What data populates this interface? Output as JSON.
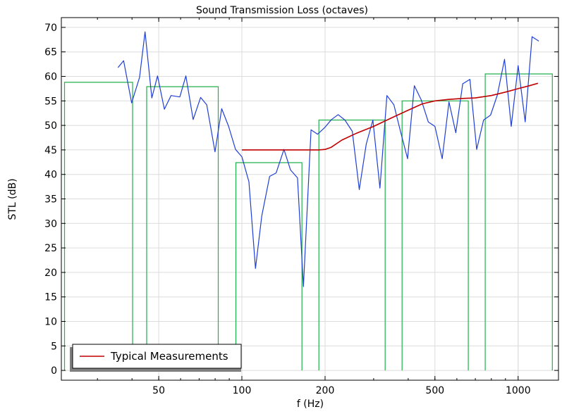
{
  "chart_data": {
    "type": "line",
    "title": "Sound Transmission Loss (octaves)",
    "xlabel": "f (Hz)",
    "ylabel": "STL (dB)",
    "xscale": "log",
    "xlim": [
      22.2,
      1400
    ],
    "ylim": [
      -2,
      72
    ],
    "grid": true,
    "x_ticks": [
      {
        "v": 50,
        "label": "50"
      },
      {
        "v": 100,
        "label": "100"
      },
      {
        "v": 200,
        "label": "200"
      },
      {
        "v": 500,
        "label": "500"
      },
      {
        "v": 1000,
        "label": "1000"
      }
    ],
    "y_ticks": [
      0,
      5,
      10,
      15,
      20,
      25,
      30,
      35,
      40,
      45,
      50,
      55,
      60,
      65,
      70
    ],
    "legend": {
      "position": "bottom-left",
      "entries": [
        "Typical Measurements"
      ]
    },
    "series": [
      {
        "color": "#1f3fd6",
        "points": [
          [
            35.6,
            61.8
          ],
          [
            37.3,
            63.2
          ],
          [
            39.9,
            54.6
          ],
          [
            42.6,
            59.8
          ],
          [
            44.6,
            69.1
          ],
          [
            47.2,
            55.6
          ],
          [
            49.5,
            60.1
          ],
          [
            52.4,
            53.3
          ],
          [
            55.4,
            56.1
          ],
          [
            59.6,
            55.8
          ],
          [
            62.7,
            60.1
          ],
          [
            66.6,
            51.2
          ],
          [
            70.9,
            55.7
          ],
          [
            74.6,
            54.2
          ],
          [
            79.9,
            44.6
          ],
          [
            84.5,
            53.4
          ],
          [
            89.5,
            49.8
          ],
          [
            94.8,
            45.1
          ],
          [
            100,
            43.6
          ],
          [
            106,
            38.5
          ],
          [
            112,
            20.8
          ],
          [
            118,
            31.5
          ],
          [
            126,
            39.6
          ],
          [
            133,
            40.3
          ],
          [
            142,
            45.1
          ],
          [
            150,
            40.9
          ],
          [
            159,
            39.3
          ],
          [
            167,
            17.1
          ],
          [
            178,
            49.1
          ],
          [
            188,
            48.2
          ],
          [
            199,
            49.5
          ],
          [
            211,
            51.2
          ],
          [
            223,
            52.2
          ],
          [
            236,
            51.1
          ],
          [
            251,
            48.8
          ],
          [
            266,
            36.9
          ],
          [
            282,
            46.2
          ],
          [
            298,
            51.1
          ],
          [
            316,
            37.2
          ],
          [
            335,
            56.1
          ],
          [
            355,
            54.2
          ],
          [
            375,
            48.8
          ],
          [
            398,
            43.2
          ],
          [
            421,
            58.1
          ],
          [
            446,
            55.2
          ],
          [
            473,
            50.7
          ],
          [
            500,
            49.8
          ],
          [
            531,
            43.2
          ],
          [
            562,
            54.8
          ],
          [
            595,
            48.5
          ],
          [
            630,
            58.5
          ],
          [
            669,
            59.4
          ],
          [
            708,
            45.1
          ],
          [
            750,
            51.1
          ],
          [
            795,
            52.1
          ],
          [
            841,
            56.2
          ],
          [
            893,
            63.5
          ],
          [
            944,
            49.8
          ],
          [
            1000,
            62.2
          ],
          [
            1061,
            50.7
          ],
          [
            1123,
            68.1
          ],
          [
            1188,
            67.2
          ]
        ]
      },
      {
        "name": "Typical Measurements",
        "color": "#c00000",
        "points": [
          [
            100,
            45
          ],
          [
            150,
            45
          ],
          [
            190,
            45
          ],
          [
            200,
            45.1
          ],
          [
            210,
            45.5
          ],
          [
            230,
            47
          ],
          [
            260,
            48.4
          ],
          [
            300,
            49.8
          ],
          [
            350,
            51.6
          ],
          [
            400,
            53.1
          ],
          [
            450,
            54.4
          ],
          [
            500,
            55
          ],
          [
            560,
            55.3
          ],
          [
            630,
            55.5
          ],
          [
            700,
            55.6
          ],
          [
            800,
            56.1
          ],
          [
            900,
            56.8
          ],
          [
            1000,
            57.5
          ],
          [
            1100,
            58.1
          ],
          [
            1180,
            58.6
          ]
        ]
      }
    ],
    "octave_bands": {
      "color": "#22b14c",
      "bands": [
        {
          "f1": 22.8,
          "f2": 40.2,
          "value": 58.8
        },
        {
          "f1": 45.2,
          "f2": 82.1,
          "value": 57.9
        },
        {
          "f1": 95.1,
          "f2": 165,
          "value": 42.4
        },
        {
          "f1": 190,
          "f2": 330,
          "value": 51.1
        },
        {
          "f1": 380,
          "f2": 660,
          "value": 55.0
        },
        {
          "f1": 760,
          "f2": 1330,
          "value": 60.5
        }
      ]
    }
  }
}
